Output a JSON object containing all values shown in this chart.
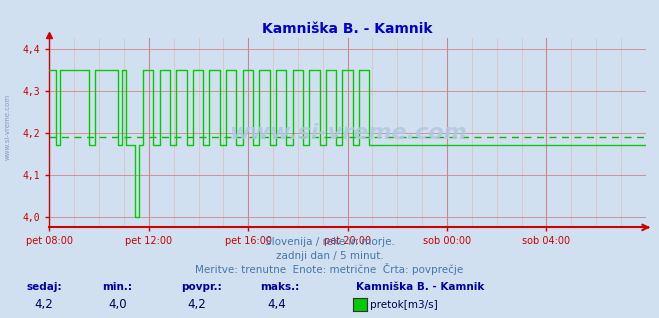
{
  "title": "Kamniška B. - Kamnik",
  "title_color": "#0000cc",
  "bg_color": "#d0e0f0",
  "plot_bg_color": "#d0e0f0",
  "line_color": "#00cc00",
  "avg_line_color": "#00bb00",
  "avg_value": 4.19,
  "ylim": [
    3.975,
    4.425
  ],
  "yticks": [
    4.0,
    4.1,
    4.2,
    4.3,
    4.4
  ],
  "grid_color_major": "#cc8888",
  "grid_color_minor": "#ddbbbb",
  "axis_color": "#cc0000",
  "xlabel_color": "#2255aa",
  "xtick_labels": [
    "pet 08:00",
    "pet 12:00",
    "pet 16:00",
    "pet 20:00",
    "sob 00:00",
    "sob 04:00"
  ],
  "watermark": "www.si-vreme.com",
  "watermark_color": "#b0c8e0",
  "left_label": "www.si-vreme.com",
  "subtitle1": "Slovenija / reke in morje.",
  "subtitle2": "zadnji dan / 5 minut.",
  "subtitle3": "Meritve: trenutne  Enote: metrične  Črta: povprečje",
  "subtitle_color": "#4477aa",
  "sedaj_label": "sedaj:",
  "min_label": "min.:",
  "povpr_label": "povpr.:",
  "maks_label": "maks.:",
  "sedaj_val": "4,2",
  "min_val": "4,0",
  "povpr_val": "4,2",
  "maks_val": "4,4",
  "legend_title": "Kamniška B. - Kamnik",
  "legend_entry": "pretok[m3/s]",
  "legend_color": "#00cc00",
  "stats_label_color": "#0000aa",
  "stats_val_color": "#000055",
  "n_points": 288,
  "high_val": 4.35,
  "low_val": 4.17,
  "very_low_val": 4.0,
  "segment_pattern": [
    {
      "val": 4.35,
      "count": 3
    },
    {
      "val": 4.17,
      "count": 2
    },
    {
      "val": 4.35,
      "count": 14
    },
    {
      "val": 4.17,
      "count": 3
    },
    {
      "val": 4.35,
      "count": 11
    },
    {
      "val": 4.17,
      "count": 2
    },
    {
      "val": 4.35,
      "count": 2
    },
    {
      "val": 4.17,
      "count": 4
    },
    {
      "val": 4.0,
      "count": 2
    },
    {
      "val": 4.17,
      "count": 2
    },
    {
      "val": 4.35,
      "count": 5
    },
    {
      "val": 4.17,
      "count": 3
    },
    {
      "val": 4.35,
      "count": 5
    },
    {
      "val": 4.17,
      "count": 3
    },
    {
      "val": 4.35,
      "count": 5
    },
    {
      "val": 4.17,
      "count": 3
    },
    {
      "val": 4.35,
      "count": 5
    },
    {
      "val": 4.17,
      "count": 3
    },
    {
      "val": 4.35,
      "count": 5
    },
    {
      "val": 4.17,
      "count": 3
    },
    {
      "val": 4.35,
      "count": 5
    },
    {
      "val": 4.17,
      "count": 3
    },
    {
      "val": 4.35,
      "count": 5
    },
    {
      "val": 4.17,
      "count": 3
    },
    {
      "val": 4.35,
      "count": 5
    },
    {
      "val": 4.17,
      "count": 3
    },
    {
      "val": 4.35,
      "count": 5
    },
    {
      "val": 4.17,
      "count": 3
    },
    {
      "val": 4.35,
      "count": 5
    },
    {
      "val": 4.17,
      "count": 3
    },
    {
      "val": 4.35,
      "count": 5
    },
    {
      "val": 4.17,
      "count": 3
    },
    {
      "val": 4.35,
      "count": 5
    },
    {
      "val": 4.17,
      "count": 3
    },
    {
      "val": 4.35,
      "count": 5
    },
    {
      "val": 4.17,
      "count": 3
    },
    {
      "val": 4.35,
      "count": 5
    },
    {
      "val": 4.17,
      "count": 10
    }
  ]
}
